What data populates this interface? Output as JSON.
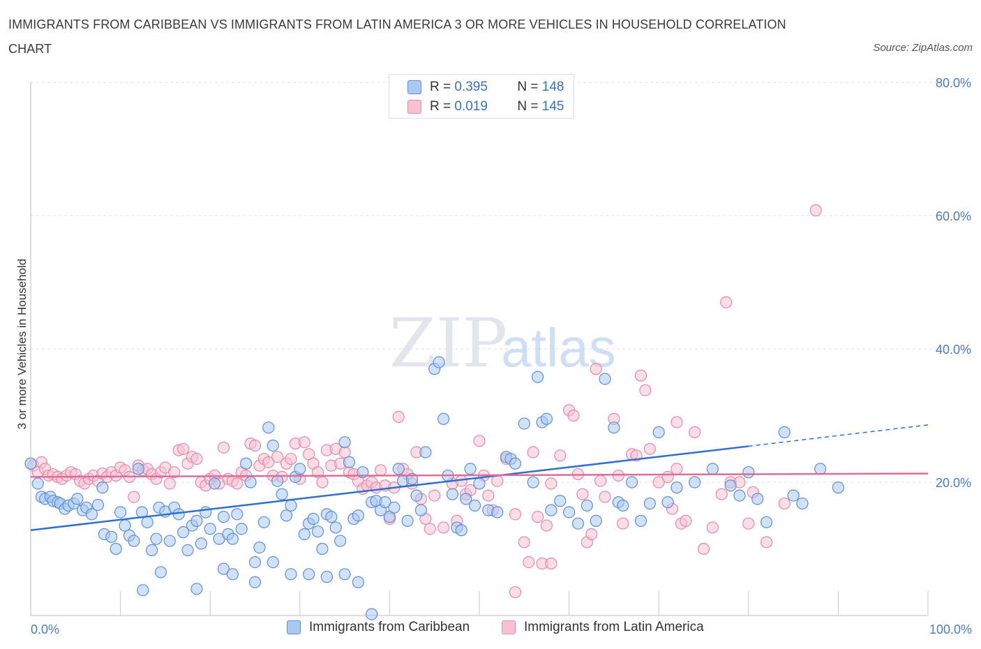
{
  "title": "IMMIGRANTS FROM CARIBBEAN VS IMMIGRANTS FROM LATIN AMERICA 3 OR MORE VEHICLES IN HOUSEHOLD CORRELATION CHART",
  "source": "Source: ZipAtlas.com",
  "watermark": {
    "zip": "ZIP",
    "atlas": "atlas"
  },
  "colors": {
    "blue_fill": "#aac8f2",
    "blue_stroke": "#5d8fd8",
    "blue_line": "#2f6fce",
    "pink_fill": "#f7c1d2",
    "pink_stroke": "#e58aa7",
    "pink_line": "#e06c96",
    "tick": "#4a7cc7",
    "grid": "#dcdcdc"
  },
  "legend": {
    "rows": [
      {
        "r_label": "R = ",
        "r_value": "0.395",
        "n_label": "N = ",
        "n_value": "148"
      },
      {
        "r_label": "R = ",
        "r_value": "0.019",
        "n_label": "N = ",
        "n_value": "145"
      }
    ]
  },
  "chart_data": {
    "type": "scatter",
    "ylabel": "3 or more Vehicles in Household",
    "xlim": [
      0,
      100
    ],
    "ylim": [
      0,
      80
    ],
    "x_tick_labels": [
      "0.0%",
      "100.0%"
    ],
    "y_ticks": [
      20,
      40,
      60,
      80
    ],
    "y_tick_labels": [
      "20.0%",
      "40.0%",
      "60.0%",
      "80.0%"
    ],
    "grid": true,
    "legend_position": "top-center",
    "series": [
      {
        "name": "Immigrants from Caribbean",
        "R": 0.395,
        "N": 148,
        "trend": {
          "x0": 0,
          "y0": 12.8,
          "x1": 80,
          "y1": 25.4,
          "dashed_to_x": 100,
          "dashed_to_y": 28.6
        },
        "points": [
          [
            0,
            22.8
          ],
          [
            0.8,
            19.8
          ],
          [
            1.2,
            17.8
          ],
          [
            1.6,
            17.5
          ],
          [
            2.2,
            17.8
          ],
          [
            2.5,
            17.2
          ],
          [
            3,
            17
          ],
          [
            3.3,
            16.8
          ],
          [
            3.8,
            16
          ],
          [
            4.2,
            16.5
          ],
          [
            4.8,
            16.8
          ],
          [
            5.2,
            17.5
          ],
          [
            5.8,
            15.8
          ],
          [
            6.2,
            16.2
          ],
          [
            6.8,
            15.2
          ],
          [
            7.5,
            16.6
          ],
          [
            8,
            19.2
          ],
          [
            8.2,
            12.2
          ],
          [
            9,
            11.8
          ],
          [
            9.5,
            10
          ],
          [
            10,
            15.5
          ],
          [
            10.5,
            13.5
          ],
          [
            11,
            12
          ],
          [
            11.5,
            11.2
          ],
          [
            12,
            22
          ],
          [
            12.4,
            15.5
          ],
          [
            13,
            14
          ],
          [
            13.5,
            9.8
          ],
          [
            14,
            11.5
          ],
          [
            14.3,
            16.2
          ],
          [
            15,
            15.6
          ],
          [
            15.5,
            11.2
          ],
          [
            16,
            16.2
          ],
          [
            16.5,
            15.2
          ],
          [
            17,
            12.5
          ],
          [
            17.5,
            9.8
          ],
          [
            18,
            13.5
          ],
          [
            18.5,
            14.2
          ],
          [
            19,
            10.8
          ],
          [
            19.5,
            15.5
          ],
          [
            20,
            13
          ],
          [
            20.5,
            19.8
          ],
          [
            21,
            11.5
          ],
          [
            21.5,
            14.8
          ],
          [
            22,
            12.2
          ],
          [
            22.5,
            11.5
          ],
          [
            23,
            15.2
          ],
          [
            23.5,
            13
          ],
          [
            24,
            22.8
          ],
          [
            24.5,
            20
          ],
          [
            25,
            8
          ],
          [
            25.5,
            10.2
          ],
          [
            26,
            14
          ],
          [
            26.5,
            28.2
          ],
          [
            27,
            25.5
          ],
          [
            27.5,
            20.2
          ],
          [
            28,
            18.2
          ],
          [
            28.5,
            15
          ],
          [
            29,
            16.5
          ],
          [
            29.5,
            20.8
          ],
          [
            30,
            22
          ],
          [
            30.5,
            12.2
          ],
          [
            31,
            13.8
          ],
          [
            31.5,
            14.5
          ],
          [
            32,
            12.6
          ],
          [
            32.5,
            10
          ],
          [
            33,
            15.2
          ],
          [
            33.5,
            14.8
          ],
          [
            34,
            13.2
          ],
          [
            34.5,
            11.2
          ],
          [
            35,
            26
          ],
          [
            35.5,
            23
          ],
          [
            36,
            14.5
          ],
          [
            36.5,
            15
          ],
          [
            37,
            21.5
          ],
          [
            38,
            17
          ],
          [
            38.5,
            17.2
          ],
          [
            39,
            15.8
          ],
          [
            39.5,
            17
          ],
          [
            40,
            14.8
          ],
          [
            40.5,
            16.2
          ],
          [
            41,
            22
          ],
          [
            41.5,
            20.2
          ],
          [
            42,
            14.2
          ],
          [
            42.5,
            20.5
          ],
          [
            43,
            18
          ],
          [
            43.5,
            15.8
          ],
          [
            44,
            24.5
          ],
          [
            45,
            37
          ],
          [
            45.5,
            38
          ],
          [
            46,
            29.5
          ],
          [
            46.5,
            21
          ],
          [
            47,
            18.2
          ],
          [
            47.5,
            13.2
          ],
          [
            48,
            12.8
          ],
          [
            48.5,
            17.5
          ],
          [
            49,
            22
          ],
          [
            49.5,
            16.5
          ],
          [
            50,
            19.8
          ],
          [
            51,
            15.8
          ],
          [
            52,
            15.5
          ],
          [
            53,
            23.8
          ],
          [
            53.5,
            23.5
          ],
          [
            54,
            22.8
          ],
          [
            55,
            28.8
          ],
          [
            56,
            20
          ],
          [
            56.5,
            35.8
          ],
          [
            57,
            29
          ],
          [
            57.5,
            29.5
          ],
          [
            58,
            15.8
          ],
          [
            59,
            17.2
          ],
          [
            60,
            15.5
          ],
          [
            61,
            13.8
          ],
          [
            62,
            16.5
          ],
          [
            63,
            14.2
          ],
          [
            64,
            35.5
          ],
          [
            65,
            28.2
          ],
          [
            65.5,
            17
          ],
          [
            66,
            16.5
          ],
          [
            67,
            20
          ],
          [
            68,
            14.2
          ],
          [
            69,
            16.8
          ],
          [
            70,
            27.5
          ],
          [
            71,
            17
          ],
          [
            72,
            19.2
          ],
          [
            74,
            20
          ],
          [
            76,
            22
          ],
          [
            78,
            19.5
          ],
          [
            79,
            18
          ],
          [
            80,
            21.5
          ],
          [
            81,
            17.5
          ],
          [
            82,
            14
          ],
          [
            84,
            27.5
          ],
          [
            85,
            18
          ],
          [
            86,
            16.8
          ],
          [
            88,
            22
          ],
          [
            90,
            19.2
          ],
          [
            12.5,
            3.8
          ],
          [
            14.5,
            6.5
          ],
          [
            18.5,
            4
          ],
          [
            21.5,
            7
          ],
          [
            22.5,
            6.2
          ],
          [
            25,
            5
          ],
          [
            27,
            8
          ],
          [
            29,
            6.2
          ],
          [
            31,
            6.2
          ],
          [
            33,
            5.8
          ],
          [
            35,
            6.2
          ],
          [
            36.5,
            5
          ],
          [
            38,
            0.2
          ]
        ]
      },
      {
        "name": "Immigrants from Latin America",
        "R": 0.019,
        "N": 145,
        "trend": {
          "x0": 0,
          "y0": 20.8,
          "x1": 100,
          "y1": 21.3
        },
        "points": [
          [
            0.3,
            22.5
          ],
          [
            0.8,
            21.5
          ],
          [
            1.2,
            23
          ],
          [
            1.6,
            22
          ],
          [
            2,
            21
          ],
          [
            2.5,
            21.2
          ],
          [
            3,
            20.8
          ],
          [
            3.5,
            20.5
          ],
          [
            4,
            21
          ],
          [
            4.5,
            21.5
          ],
          [
            5,
            21.2
          ],
          [
            5.5,
            20.2
          ],
          [
            6,
            19.8
          ],
          [
            6.5,
            20.5
          ],
          [
            7,
            21
          ],
          [
            7.5,
            20.2
          ],
          [
            8,
            21.3
          ],
          [
            8.5,
            20.8
          ],
          [
            9,
            21.5
          ],
          [
            9.5,
            21
          ],
          [
            10,
            22.2
          ],
          [
            10.5,
            21.8
          ],
          [
            11,
            20.8
          ],
          [
            11.5,
            17.8
          ],
          [
            12,
            22.5
          ],
          [
            12.5,
            21.8
          ],
          [
            13,
            22
          ],
          [
            13.5,
            21.2
          ],
          [
            14,
            20.5
          ],
          [
            14.5,
            21.5
          ],
          [
            15,
            22.2
          ],
          [
            15.5,
            19.8
          ],
          [
            16,
            21.5
          ],
          [
            16.5,
            24.8
          ],
          [
            17,
            25
          ],
          [
            17.5,
            22.8
          ],
          [
            18,
            23.8
          ],
          [
            18.5,
            23.5
          ],
          [
            19,
            20
          ],
          [
            19.5,
            19.5
          ],
          [
            20,
            20.5
          ],
          [
            20.5,
            21
          ],
          [
            21,
            19.8
          ],
          [
            21.5,
            25.2
          ],
          [
            22,
            20.5
          ],
          [
            22.5,
            20.2
          ],
          [
            23,
            19.8
          ],
          [
            23.5,
            21.5
          ],
          [
            24,
            21
          ],
          [
            24.5,
            25.8
          ],
          [
            25,
            25.5
          ],
          [
            25.5,
            22.5
          ],
          [
            26,
            23.5
          ],
          [
            26.5,
            23
          ],
          [
            27,
            21
          ],
          [
            27.5,
            23.8
          ],
          [
            28,
            20.8
          ],
          [
            28.5,
            22.8
          ],
          [
            29,
            23.5
          ],
          [
            29.5,
            25.8
          ],
          [
            30,
            20.5
          ],
          [
            30.5,
            26
          ],
          [
            31,
            24.2
          ],
          [
            31.5,
            22.8
          ],
          [
            32,
            21.5
          ],
          [
            32.5,
            20
          ],
          [
            33,
            24.8
          ],
          [
            33.5,
            22.5
          ],
          [
            34,
            25
          ],
          [
            34.5,
            22.8
          ],
          [
            35,
            24.5
          ],
          [
            35.5,
            21.5
          ],
          [
            36,
            21.2
          ],
          [
            36.5,
            20.2
          ],
          [
            37,
            19
          ],
          [
            37.5,
            19.5
          ],
          [
            38,
            20
          ],
          [
            38.5,
            19.2
          ],
          [
            39,
            21.8
          ],
          [
            39.5,
            19.5
          ],
          [
            40,
            14.5
          ],
          [
            40.5,
            19.2
          ],
          [
            41,
            29.8
          ],
          [
            41.5,
            22
          ],
          [
            42,
            21.2
          ],
          [
            42.5,
            19.8
          ],
          [
            43,
            24.5
          ],
          [
            43.5,
            17.5
          ],
          [
            44,
            14.5
          ],
          [
            44.5,
            13
          ],
          [
            45,
            18
          ],
          [
            46,
            13.2
          ],
          [
            47,
            19.8
          ],
          [
            47.5,
            14.2
          ],
          [
            48,
            20.2
          ],
          [
            48.5,
            18.2
          ],
          [
            49,
            18.8
          ],
          [
            50,
            26.2
          ],
          [
            50.5,
            21
          ],
          [
            51,
            18
          ],
          [
            51.5,
            15.8
          ],
          [
            52,
            20.2
          ],
          [
            53,
            23.5
          ],
          [
            54,
            15.2
          ],
          [
            55,
            11
          ],
          [
            55.5,
            8
          ],
          [
            56,
            24.5
          ],
          [
            56.5,
            14.8
          ],
          [
            57,
            7.8
          ],
          [
            57.5,
            13.5
          ],
          [
            58,
            19.8
          ],
          [
            59,
            24
          ],
          [
            60,
            30.8
          ],
          [
            60.5,
            30
          ],
          [
            61,
            21.2
          ],
          [
            61.5,
            18.2
          ],
          [
            62,
            11
          ],
          [
            62.5,
            12.2
          ],
          [
            63,
            37
          ],
          [
            63.5,
            20.2
          ],
          [
            64,
            17.8
          ],
          [
            65,
            29.5
          ],
          [
            65.5,
            21
          ],
          [
            66,
            13.8
          ],
          [
            67,
            24.2
          ],
          [
            67.5,
            24
          ],
          [
            68,
            36
          ],
          [
            68.5,
            33.8
          ],
          [
            69,
            25
          ],
          [
            70,
            20
          ],
          [
            71,
            20.8
          ],
          [
            71.5,
            16
          ],
          [
            72,
            29
          ],
          [
            72.5,
            13.8
          ],
          [
            73,
            14.2
          ],
          [
            74,
            27.5
          ],
          [
            75,
            10
          ],
          [
            76,
            13.2
          ],
          [
            77,
            18.2
          ],
          [
            78,
            20
          ],
          [
            79,
            20
          ],
          [
            80,
            13.8
          ],
          [
            80.5,
            18.5
          ],
          [
            82,
            11
          ],
          [
            84,
            16.8
          ],
          [
            87.5,
            60.8
          ],
          [
            77.5,
            47
          ],
          [
            72,
            22
          ],
          [
            58,
            7.8
          ],
          [
            54,
            3.5
          ]
        ]
      }
    ]
  }
}
